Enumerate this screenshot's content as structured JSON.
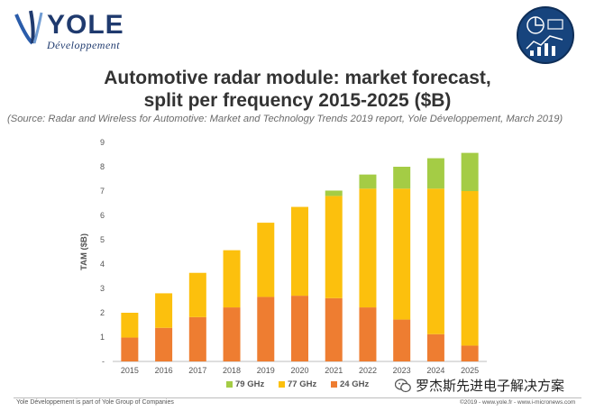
{
  "logo": {
    "word": "YOLE",
    "sub": "Développement"
  },
  "title": {
    "line1": "Automotive radar module: market forecast,",
    "line2": "split per frequency 2015-2025 ($B)"
  },
  "source": "(Source: Radar and Wireless for Automotive: Market and Technology Trends 2019 report, Yole Développement, March 2019)",
  "chart_data": {
    "type": "bar",
    "stacked": true,
    "title": "Automotive radar module: market forecast, split per frequency 2015-2025 ($B)",
    "xlabel": "",
    "ylabel": "TAM ($B)",
    "ylim": [
      0,
      9
    ],
    "yticks": [
      "-",
      "1",
      "2",
      "3",
      "4",
      "5",
      "6",
      "7",
      "8",
      "9"
    ],
    "categories": [
      "2015",
      "2016",
      "2017",
      "2018",
      "2019",
      "2020",
      "2021",
      "2022",
      "2023",
      "2024",
      "2025"
    ],
    "series": [
      {
        "name": "24 GHz",
        "color": "#ee7d31",
        "values": [
          0.98,
          1.38,
          1.82,
          2.22,
          2.65,
          2.7,
          2.6,
          2.22,
          1.72,
          1.12,
          0.65
        ]
      },
      {
        "name": "77 GHz",
        "color": "#fcc00d",
        "values": [
          1.02,
          1.42,
          1.82,
          2.35,
          3.05,
          3.65,
          4.2,
          4.88,
          5.38,
          5.98,
          6.35
        ]
      },
      {
        "name": "79 GHz",
        "color": "#a4cc45",
        "values": [
          0,
          0,
          0,
          0,
          0,
          0,
          0.22,
          0.58,
          0.9,
          1.25,
          1.57
        ]
      }
    ],
    "legend": {
      "position": "bottom",
      "order": [
        "79 GHz",
        "77 GHz",
        "24 GHz"
      ]
    }
  },
  "footer": {
    "left": "Yole Développement is part of Yole Group of Companies",
    "right": "©2019 - www.yole.fr - www.i-micronews.com"
  },
  "watermark": "罗杰斯先进电子解决方案"
}
